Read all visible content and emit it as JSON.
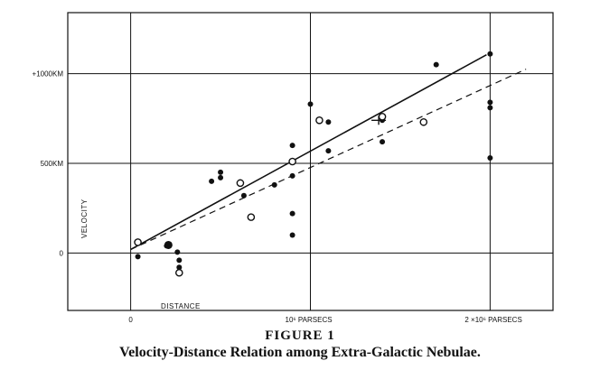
{
  "figure": {
    "title": "FIGURE 1",
    "caption": "Velocity-Distance Relation among Extra-Galactic Nebulae."
  },
  "chart_data": {
    "type": "scatter",
    "xlabel": "DISTANCE",
    "ylabel": "VELOCITY",
    "xlim": [
      -0.35,
      2.35
    ],
    "ylim": [
      -320,
      1340
    ],
    "grid": true,
    "x_ticks": [
      {
        "value": 0,
        "label": "0"
      },
      {
        "value": 1,
        "label": "10⁶ PARSECS"
      },
      {
        "value": 2,
        "label": "2 ×10⁶ PARSECS"
      }
    ],
    "y_ticks": [
      {
        "value": 0,
        "label": "0"
      },
      {
        "value": 500,
        "label": "500KM"
      },
      {
        "value": 1000,
        "label": "+1000KM"
      }
    ],
    "series": [
      {
        "marker": "filled-circle",
        "points": [
          {
            "x": 0.04,
            "y": -20
          },
          {
            "x": 0.2,
            "y": 40
          },
          {
            "x": 0.26,
            "y": 5
          },
          {
            "x": 0.27,
            "y": -40
          },
          {
            "x": 0.27,
            "y": -80
          },
          {
            "x": 0.45,
            "y": 400
          },
          {
            "x": 0.5,
            "y": 420
          },
          {
            "x": 0.5,
            "y": 450
          },
          {
            "x": 0.63,
            "y": 320
          },
          {
            "x": 0.8,
            "y": 380
          },
          {
            "x": 0.9,
            "y": 600
          },
          {
            "x": 0.9,
            "y": 430
          },
          {
            "x": 0.9,
            "y": 220
          },
          {
            "x": 0.9,
            "y": 100
          },
          {
            "x": 1.0,
            "y": 830
          },
          {
            "x": 1.1,
            "y": 730
          },
          {
            "x": 1.1,
            "y": 570
          },
          {
            "x": 1.4,
            "y": 740
          },
          {
            "x": 1.4,
            "y": 620
          },
          {
            "x": 1.7,
            "y": 1050
          },
          {
            "x": 2.0,
            "y": 1110
          },
          {
            "x": 2.0,
            "y": 840
          },
          {
            "x": 2.0,
            "y": 810
          },
          {
            "x": 2.0,
            "y": 530
          }
        ]
      },
      {
        "marker": "open-circle",
        "points": [
          {
            "x": 0.04,
            "y": 60
          },
          {
            "x": 0.27,
            "y": -110
          },
          {
            "x": 0.61,
            "y": 390
          },
          {
            "x": 0.67,
            "y": 200
          },
          {
            "x": 0.9,
            "y": 510
          },
          {
            "x": 1.05,
            "y": 740
          },
          {
            "x": 1.4,
            "y": 760
          },
          {
            "x": 1.63,
            "y": 730
          }
        ]
      },
      {
        "marker": "large-filled-circle",
        "points": [
          {
            "x": 0.21,
            "y": 45
          }
        ]
      },
      {
        "marker": "cross",
        "points": [
          {
            "x": 1.38,
            "y": 740
          }
        ]
      }
    ],
    "lines": [
      {
        "style": "solid",
        "from": [
          0.0,
          20
        ],
        "to": [
          1.98,
          1105
        ]
      },
      {
        "style": "dashed",
        "from": [
          0.0,
          20
        ],
        "to": [
          2.2,
          1025
        ]
      }
    ]
  }
}
